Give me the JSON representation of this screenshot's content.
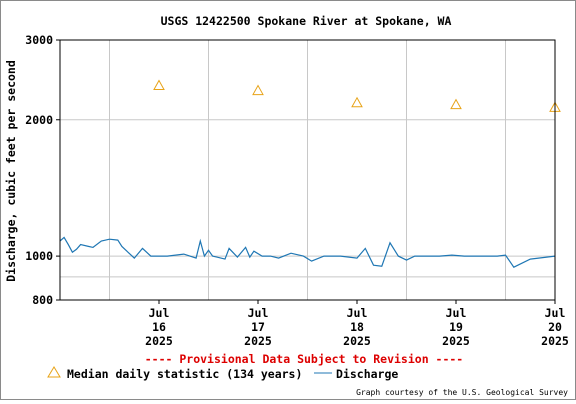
{
  "chart_data": {
    "type": "line",
    "title": "USGS 12422500 Spokane River at Spokane, WA",
    "ylabel": "Discharge, cubic feet per second",
    "xlabel": "",
    "y_scale": "log",
    "ylim": [
      800,
      3000
    ],
    "xlim": [
      "2025-07-15 12:00",
      "2025-07-20 12:00"
    ],
    "y_ticks": [
      {
        "value": 800,
        "label": "800"
      },
      {
        "value": 1000,
        "label": "1000"
      },
      {
        "value": 2000,
        "label": "2000"
      },
      {
        "value": 3000,
        "label": "3000"
      }
    ],
    "x_ticks": [
      {
        "value": "2025-07-16",
        "lines": [
          "Jul",
          "16",
          "2025"
        ]
      },
      {
        "value": "2025-07-17",
        "lines": [
          "Jul",
          "17",
          "2025"
        ]
      },
      {
        "value": "2025-07-18",
        "lines": [
          "Jul",
          "18",
          "2025"
        ]
      },
      {
        "value": "2025-07-19",
        "lines": [
          "Jul",
          "19",
          "2025"
        ]
      },
      {
        "value": "2025-07-20",
        "lines": [
          "Jul",
          "20",
          "2025"
        ]
      }
    ],
    "grid": true,
    "legend_position": "bottom-left",
    "series": [
      {
        "name": "Median daily statistic (134 years)",
        "kind": "markers",
        "marker": "triangle",
        "color": "#e8a317",
        "x": [
          "2025-07-16",
          "2025-07-17",
          "2025-07-18",
          "2025-07-19",
          "2025-07-20"
        ],
        "y": [
          2380,
          2320,
          2180,
          2160,
          2130
        ]
      },
      {
        "name": "Discharge",
        "kind": "line",
        "color": "#1f77b4",
        "x": [
          "2025-07-15 12:00",
          "2025-07-15 13:00",
          "2025-07-15 14:00",
          "2025-07-15 15:00",
          "2025-07-15 16:00",
          "2025-07-15 17:00",
          "2025-07-15 19:00",
          "2025-07-15 20:00",
          "2025-07-15 22:00",
          "2025-07-16 00:00",
          "2025-07-16 02:00",
          "2025-07-16 03:00",
          "2025-07-16 06:00",
          "2025-07-16 08:00",
          "2025-07-16 10:00",
          "2025-07-16 14:00",
          "2025-07-16 18:00",
          "2025-07-16 21:00",
          "2025-07-16 22:00",
          "2025-07-16 23:00",
          "2025-07-17 00:00",
          "2025-07-17 01:00",
          "2025-07-17 02:00",
          "2025-07-17 04:00",
          "2025-07-17 05:00",
          "2025-07-17 07:00",
          "2025-07-17 09:00",
          "2025-07-17 10:00",
          "2025-07-17 11:00",
          "2025-07-17 13:00",
          "2025-07-17 15:00",
          "2025-07-17 17:00",
          "2025-07-17 20:00",
          "2025-07-17 23:00",
          "2025-07-18 01:00",
          "2025-07-18 04:00",
          "2025-07-18 08:00",
          "2025-07-18 12:00",
          "2025-07-18 14:00",
          "2025-07-18 16:00",
          "2025-07-18 18:00",
          "2025-07-18 20:00",
          "2025-07-18 22:00",
          "2025-07-19 00:00",
          "2025-07-19 02:00",
          "2025-07-19 05:00",
          "2025-07-19 08:00",
          "2025-07-19 11:00",
          "2025-07-19 14:00",
          "2025-07-19 18:00",
          "2025-07-19 22:00",
          "2025-07-20 00:00",
          "2025-07-20 02:00",
          "2025-07-20 06:00",
          "2025-07-20 10:00",
          "2025-07-20 12:00"
        ],
        "y": [
          1080,
          1100,
          1060,
          1020,
          1035,
          1060,
          1050,
          1045,
          1080,
          1090,
          1085,
          1050,
          990,
          1040,
          1000,
          1000,
          1010,
          990,
          1080,
          1000,
          1030,
          1000,
          995,
          985,
          1040,
          995,
          1045,
          995,
          1025,
          1000,
          1000,
          990,
          1015,
          1000,
          975,
          1000,
          1000,
          990,
          1040,
          955,
          950,
          1070,
          1000,
          980,
          1000,
          1000,
          1000,
          1005,
          1000,
          1000,
          1000,
          1005,
          945,
          985,
          995,
          1000
        ]
      }
    ]
  },
  "notice": "---- Provisional Data Subject to Revision ----",
  "credit": "Graph courtesy of the U.S. Geological Survey",
  "colors": {
    "notice": "#dd0000",
    "median": "#e8a317",
    "discharge": "#1f77b4",
    "grid": "#c8c8c8"
  }
}
